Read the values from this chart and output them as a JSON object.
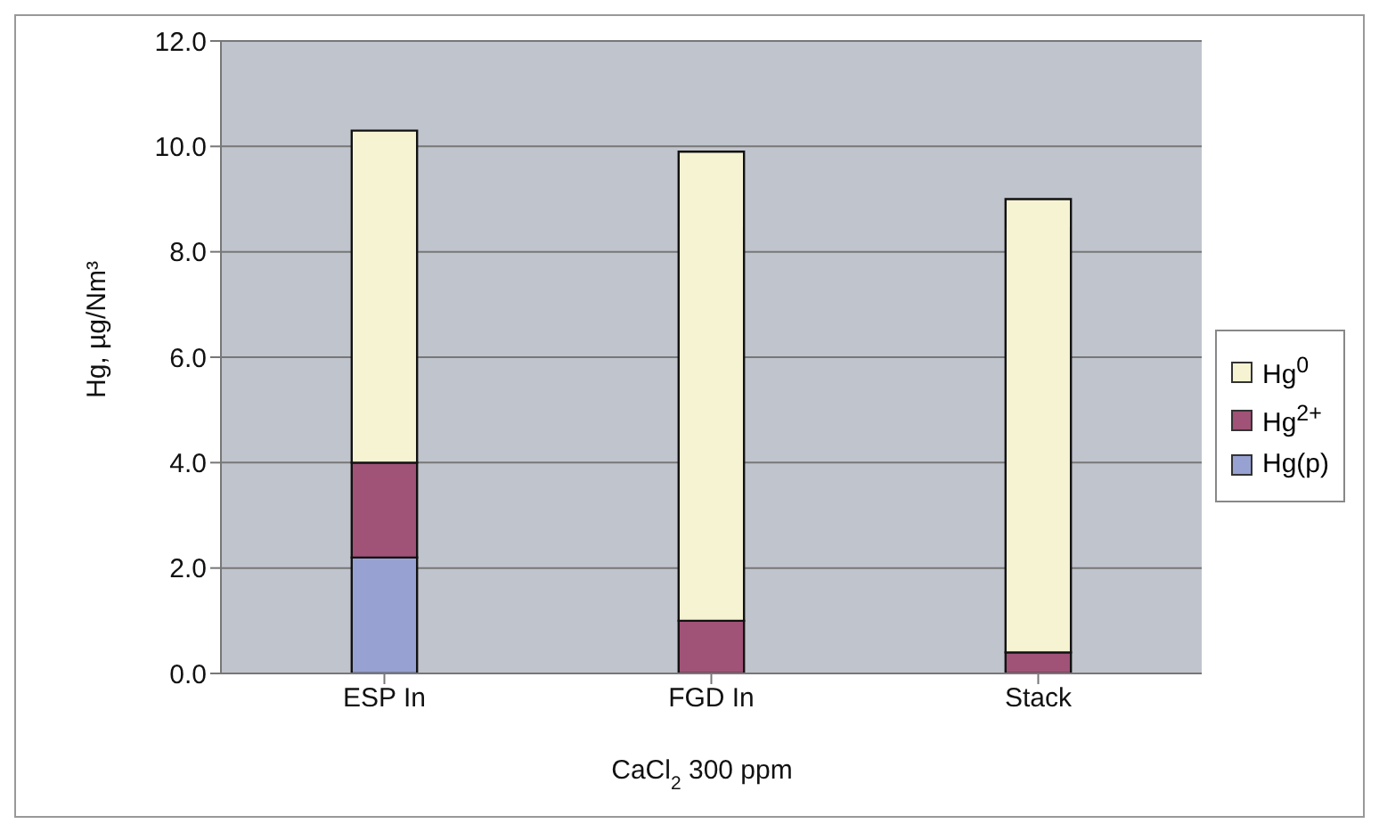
{
  "chart_data": {
    "type": "bar",
    "stacked": true,
    "categories": [
      "ESP In",
      "FGD In",
      "Stack"
    ],
    "series": [
      {
        "name": "Hg(p)",
        "color": "#98a2d2",
        "values": [
          2.2,
          0,
          0
        ]
      },
      {
        "name": "Hg$^{2+}$",
        "color": "#a05277",
        "values": [
          1.8,
          1.0,
          0.4
        ]
      },
      {
        "name": "Hg$^{0}$",
        "color": "#f5f3d2",
        "values": [
          6.3,
          8.9,
          8.6
        ]
      }
    ],
    "xlabel": "CaCl$_{2}$ 300 ppm",
    "ylabel": "Hg, µg/Nm³",
    "ylim": [
      0,
      12
    ],
    "yticks": [
      {
        "value": 0,
        "label": "0.0"
      },
      {
        "value": 2,
        "label": "2.0"
      },
      {
        "value": 4,
        "label": "4.0"
      },
      {
        "value": 6,
        "label": "6.0"
      },
      {
        "value": 8,
        "label": "8.0"
      },
      {
        "value": 10,
        "label": "10.0"
      },
      {
        "value": 12,
        "label": "12.0"
      }
    ],
    "grid": "y",
    "legend": "right"
  }
}
